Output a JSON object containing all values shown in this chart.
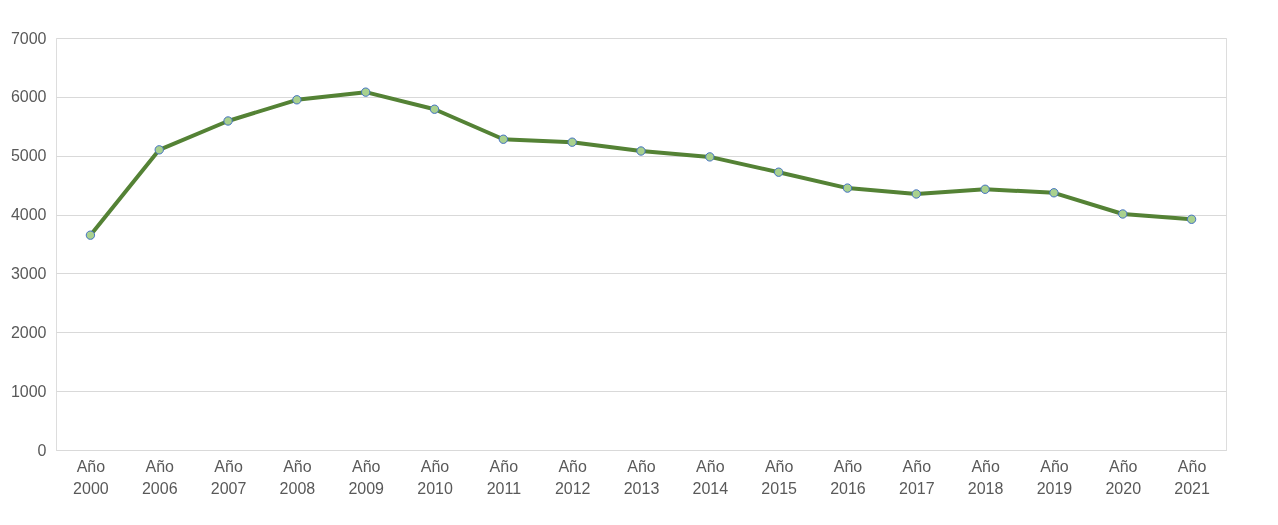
{
  "chart_data": {
    "type": "line",
    "categories": [
      "Año 2000",
      "Año 2006",
      "Año 2007",
      "Año 2008",
      "Año 2009",
      "Año 2010",
      "Año 2011",
      "Año 2012",
      "Año 2013",
      "Año 2014",
      "Año 2015",
      "Año 2016",
      "Año 2017",
      "Año 2018",
      "Año 2019",
      "Año 2020",
      "Año 2021"
    ],
    "series": [
      {
        "color": "#548235",
        "values": [
          3650,
          5100,
          5590,
          5950,
          6080,
          5790,
          5280,
          5230,
          5080,
          4980,
          4720,
          4450,
          4350,
          4430,
          4370,
          4010,
          3920
        ]
      }
    ],
    "ylim": [
      0,
      7000
    ],
    "yticks": [
      0,
      1000,
      2000,
      3000,
      4000,
      5000,
      6000,
      7000
    ],
    "grid": "y",
    "marker": "circle",
    "line_style": "solid"
  }
}
